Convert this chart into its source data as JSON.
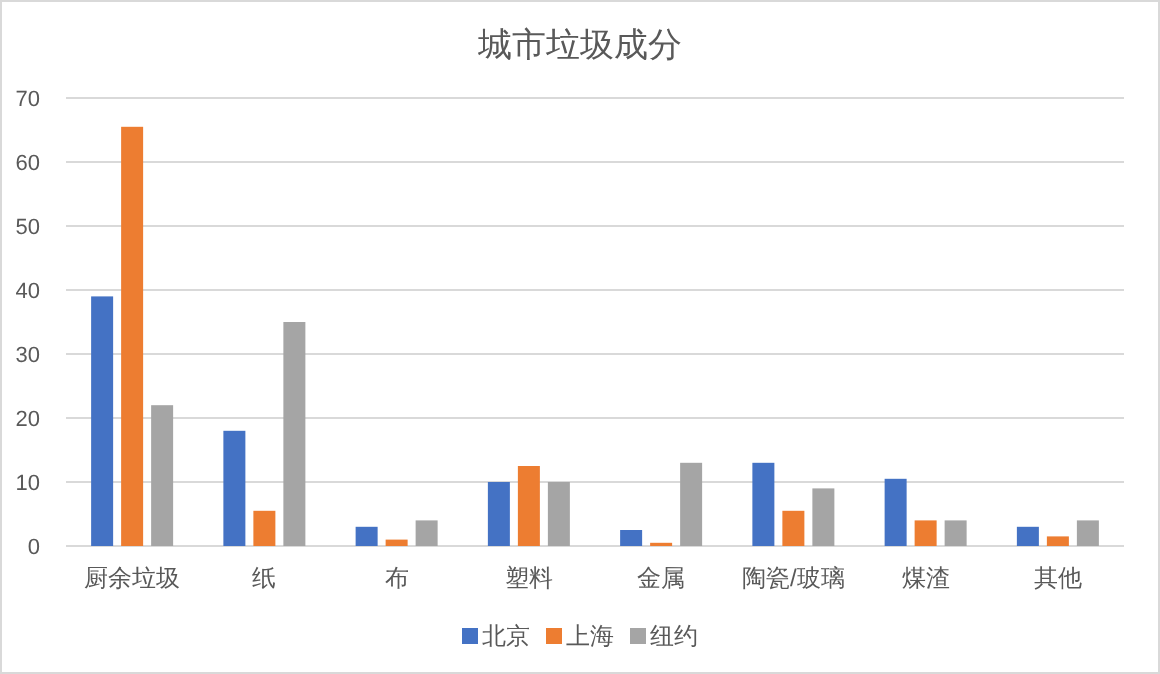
{
  "chart_data": {
    "type": "bar",
    "title": "城市垃圾成分",
    "categories": [
      "厨余垃圾",
      "纸",
      "布",
      "塑料",
      "金属",
      "陶瓷/玻璃",
      "煤渣",
      "其他"
    ],
    "series": [
      {
        "name": "北京",
        "color": "#4472c4",
        "values": [
          39,
          18,
          3,
          10,
          2.5,
          13,
          10.5,
          3
        ]
      },
      {
        "name": "上海",
        "color": "#ed7d31",
        "values": [
          65.5,
          5.5,
          1,
          12.5,
          0.5,
          5.5,
          4,
          1.5
        ]
      },
      {
        "name": "纽约",
        "color": "#a5a5a5",
        "values": [
          22,
          35,
          4,
          10,
          13,
          9,
          4,
          4
        ]
      }
    ],
    "ylim": [
      0,
      70
    ],
    "yticks": [
      0,
      10,
      20,
      30,
      40,
      50,
      60,
      70
    ],
    "grid": "y",
    "legend": "bottom"
  }
}
